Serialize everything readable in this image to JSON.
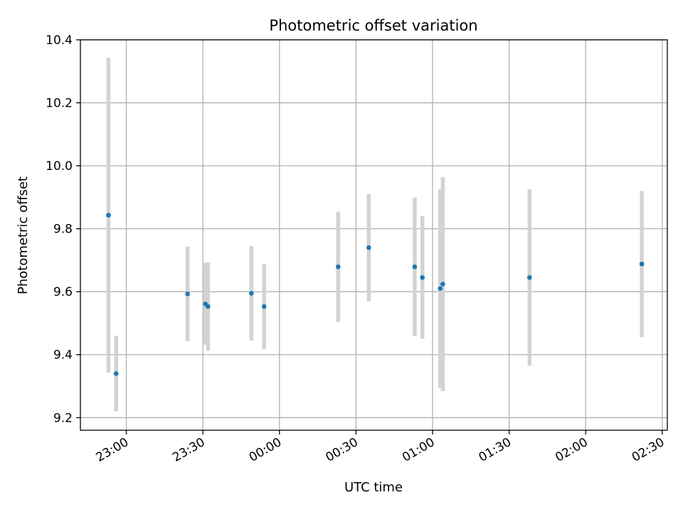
{
  "chart_data": {
    "type": "scatter",
    "title": "Photometric offset variation",
    "xlabel": "UTC time",
    "ylabel": "Photometric offset",
    "x_ticks": [
      "22:30",
      "23:00",
      "23:30",
      "00:00",
      "00:30",
      "01:00",
      "01:30",
      "02:00",
      "02:30"
    ],
    "x_tick_labels": [
      "23:00",
      "23:30",
      "00:00",
      "00:30",
      "01:00",
      "01:30",
      "02:00",
      "02:30"
    ],
    "xlim": [
      "22:42",
      "02:32"
    ],
    "y_ticks": [
      9.2,
      9.4,
      9.6,
      9.8,
      10.0,
      10.2,
      10.4
    ],
    "y_tick_labels": [
      "9.2",
      "9.4",
      "9.6",
      "9.8",
      "10.0",
      "10.2",
      "10.4"
    ],
    "ylim": [
      9.16,
      10.4
    ],
    "grid": true,
    "marker_color": "#1f77b4",
    "errorbar_color": "#d3d3d3",
    "points": [
      {
        "time": "22:53",
        "y": 9.843,
        "err": 0.5
      },
      {
        "time": "22:56",
        "y": 9.34,
        "err": 0.12
      },
      {
        "time": "23:24",
        "y": 9.593,
        "err": 0.15
      },
      {
        "time": "23:31",
        "y": 9.561,
        "err": 0.13
      },
      {
        "time": "23:32",
        "y": 9.553,
        "err": 0.14
      },
      {
        "time": "23:49",
        "y": 9.595,
        "err": 0.15
      },
      {
        "time": "23:54",
        "y": 9.553,
        "err": 0.135
      },
      {
        "time": "00:23",
        "y": 9.679,
        "err": 0.175
      },
      {
        "time": "00:35",
        "y": 9.74,
        "err": 0.17
      },
      {
        "time": "00:53",
        "y": 9.679,
        "err": 0.22
      },
      {
        "time": "00:56",
        "y": 9.645,
        "err": 0.195
      },
      {
        "time": "01:03",
        "y": 9.61,
        "err": 0.315
      },
      {
        "time": "01:04",
        "y": 9.624,
        "err": 0.34
      },
      {
        "time": "01:38",
        "y": 9.645,
        "err": 0.28
      },
      {
        "time": "02:22",
        "y": 9.688,
        "err": 0.232
      }
    ]
  }
}
